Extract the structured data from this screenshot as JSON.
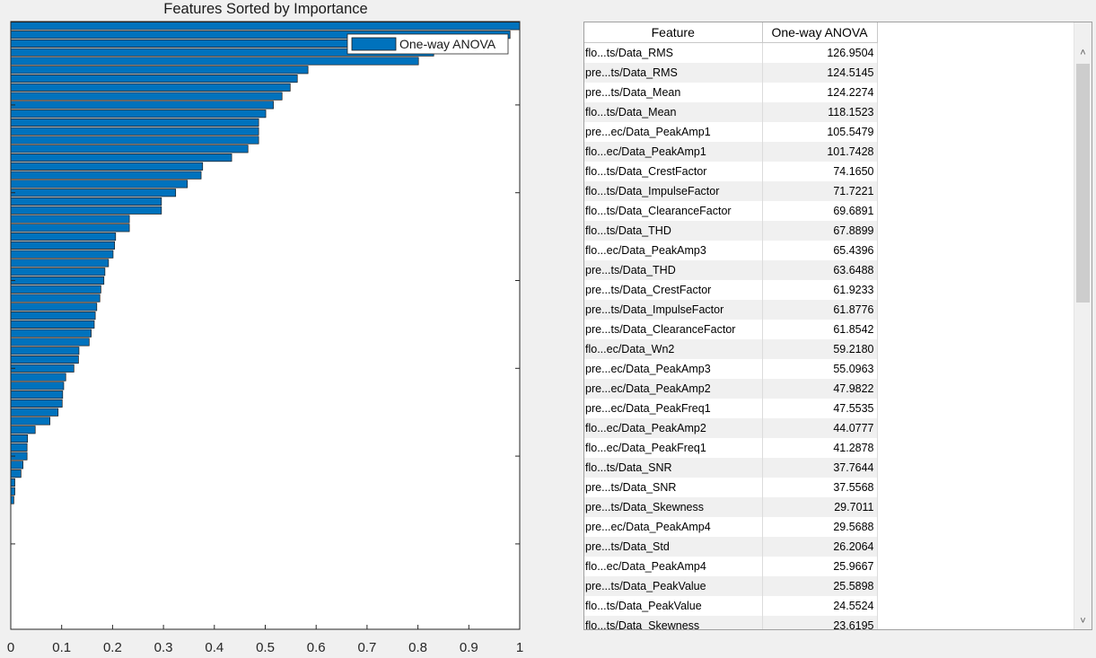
{
  "chart_data": {
    "type": "bar",
    "orientation": "horizontal",
    "title": "Features Sorted by Importance",
    "xlabel": "",
    "ylabel": "",
    "xlim": [
      0,
      1
    ],
    "xticks": [
      "0",
      "0.1",
      "0.2",
      "0.3",
      "0.4",
      "0.5",
      "0.6",
      "0.7",
      "0.8",
      "0.9",
      "1"
    ],
    "legend": {
      "label": "One-way ANOVA",
      "location": "top-right"
    },
    "bar_color": "#0072BD",
    "series": [
      {
        "name": "One-way ANOVA",
        "values": [
          1.0,
          0.981,
          0.929,
          0.831,
          0.801,
          0.584,
          0.563,
          0.549,
          0.533,
          0.516,
          0.501,
          0.487,
          0.487,
          0.487,
          0.466,
          0.434,
          0.377,
          0.374,
          0.347,
          0.324,
          0.296,
          0.296,
          0.233,
          0.233,
          0.206,
          0.204,
          0.201,
          0.192,
          0.185,
          0.183,
          0.177,
          0.175,
          0.169,
          0.166,
          0.164,
          0.158,
          0.154,
          0.134,
          0.133,
          0.124,
          0.108,
          0.104,
          0.102,
          0.101,
          0.093,
          0.077,
          0.048,
          0.033,
          0.032,
          0.032,
          0.024,
          0.02,
          0.008,
          0.008,
          0.006
        ]
      }
    ]
  },
  "table": {
    "headers": {
      "feature": "Feature",
      "score": "One-way ANOVA"
    },
    "rows": [
      {
        "feature": "flo...ts/Data_RMS",
        "score": "126.9504"
      },
      {
        "feature": "pre...ts/Data_RMS",
        "score": "124.5145"
      },
      {
        "feature": "pre...ts/Data_Mean",
        "score": "124.2274"
      },
      {
        "feature": "flo...ts/Data_Mean",
        "score": "118.1523"
      },
      {
        "feature": "pre...ec/Data_PeakAmp1",
        "score": "105.5479"
      },
      {
        "feature": "flo...ec/Data_PeakAmp1",
        "score": "101.7428"
      },
      {
        "feature": "flo...ts/Data_CrestFactor",
        "score": "74.1650"
      },
      {
        "feature": "flo...ts/Data_ImpulseFactor",
        "score": "71.7221"
      },
      {
        "feature": "flo...ts/Data_ClearanceFactor",
        "score": "69.6891"
      },
      {
        "feature": "flo...ts/Data_THD",
        "score": "67.8899"
      },
      {
        "feature": "flo...ec/Data_PeakAmp3",
        "score": "65.4396"
      },
      {
        "feature": "pre...ts/Data_THD",
        "score": "63.6488"
      },
      {
        "feature": "pre...ts/Data_CrestFactor",
        "score": "61.9233"
      },
      {
        "feature": "pre...ts/Data_ImpulseFactor",
        "score": "61.8776"
      },
      {
        "feature": "pre...ts/Data_ClearanceFactor",
        "score": "61.8542"
      },
      {
        "feature": "flo...ec/Data_Wn2",
        "score": "59.2180"
      },
      {
        "feature": "pre...ec/Data_PeakAmp3",
        "score": "55.0963"
      },
      {
        "feature": "pre...ec/Data_PeakAmp2",
        "score": "47.9822"
      },
      {
        "feature": "pre...ec/Data_PeakFreq1",
        "score": "47.5535"
      },
      {
        "feature": "flo...ec/Data_PeakAmp2",
        "score": "44.0777"
      },
      {
        "feature": "flo...ec/Data_PeakFreq1",
        "score": "41.2878"
      },
      {
        "feature": "flo...ts/Data_SNR",
        "score": "37.7644"
      },
      {
        "feature": "pre...ts/Data_SNR",
        "score": "37.5568"
      },
      {
        "feature": "pre...ts/Data_Skewness",
        "score": "29.7011"
      },
      {
        "feature": "pre...ec/Data_PeakAmp4",
        "score": "29.5688"
      },
      {
        "feature": "pre...ts/Data_Std",
        "score": "26.2064"
      },
      {
        "feature": "flo...ec/Data_PeakAmp4",
        "score": "25.9667"
      },
      {
        "feature": "pre...ts/Data_PeakValue",
        "score": "25.5898"
      },
      {
        "feature": "flo...ts/Data_PeakValue",
        "score": "24.5524"
      },
      {
        "feature": "flo...ts/Data_Skewness",
        "score": "23.6195"
      }
    ]
  },
  "scrollbar": {
    "up_icon": "chevron-up-icon",
    "down_icon": "chevron-down-icon"
  }
}
